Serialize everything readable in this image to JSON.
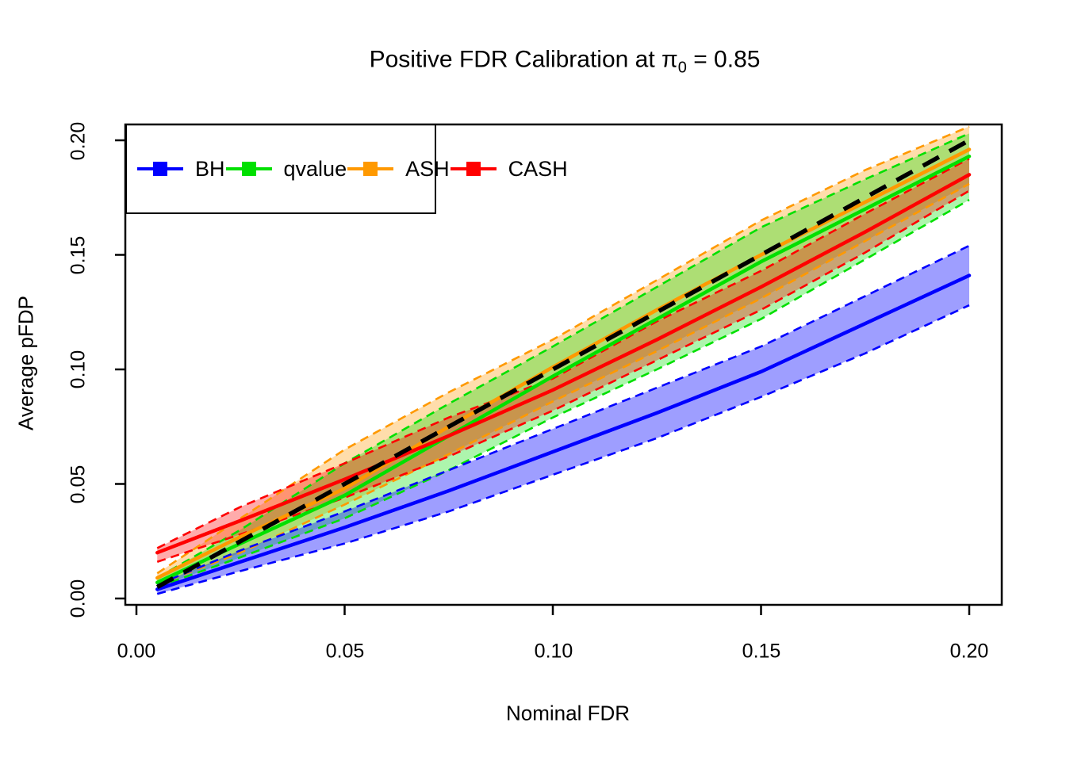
{
  "title": {
    "prefix": "Positive FDR Calibration at ",
    "pi_symbol": "π",
    "pi_subscript": "0",
    "suffix": " = 0.85"
  },
  "axes": {
    "x": {
      "label": "Nominal FDR",
      "ticks": [
        "0.00",
        "0.05",
        "0.10",
        "0.15",
        "0.20"
      ],
      "tick_values": [
        0,
        0.05,
        0.1,
        0.15,
        0.2
      ],
      "range": [
        0,
        0.2
      ]
    },
    "y": {
      "label": "Average pFDP",
      "ticks": [
        "0.00",
        "0.05",
        "0.10",
        "0.15",
        "0.20"
      ],
      "tick_values": [
        0,
        0.05,
        0.1,
        0.15,
        0.2
      ],
      "range": [
        0,
        0.2
      ]
    }
  },
  "legend": {
    "items": [
      {
        "label": "BH",
        "color": "#0000FF"
      },
      {
        "label": "qvalue",
        "color": "#00E000"
      },
      {
        "label": "ASH",
        "color": "#FF9900"
      },
      {
        "label": "CASH",
        "color": "#FF0000"
      }
    ],
    "position": "top-left",
    "columns": 2
  },
  "chart_data": {
    "type": "line",
    "title": "Positive FDR Calibration at pi0 = 0.85",
    "xlabel": "Nominal FDR",
    "ylabel": "Average pFDP",
    "xlim": [
      0,
      0.2
    ],
    "ylim": [
      0,
      0.2
    ],
    "grid": false,
    "x": [
      0.005,
      0.025,
      0.05,
      0.075,
      0.1,
      0.125,
      0.15,
      0.175,
      0.2
    ],
    "series": [
      {
        "name": "BH",
        "color": "#0000FF",
        "fill": "rgba(0,0,255,0.38)",
        "mean": [
          0.004,
          0.016,
          0.031,
          0.047,
          0.064,
          0.081,
          0.099,
          0.12,
          0.141
        ],
        "lower": [
          0.002,
          0.012,
          0.024,
          0.038,
          0.054,
          0.07,
          0.088,
          0.107,
          0.128
        ],
        "upper": [
          0.006,
          0.021,
          0.038,
          0.056,
          0.074,
          0.092,
          0.11,
          0.132,
          0.154
        ]
      },
      {
        "name": "qvalue",
        "color": "#00E000",
        "fill": "rgba(0,224,0,0.32)",
        "mean": [
          0.007,
          0.024,
          0.045,
          0.071,
          0.097,
          0.122,
          0.147,
          0.17,
          0.193
        ],
        "lower": [
          0.005,
          0.018,
          0.035,
          0.056,
          0.079,
          0.1,
          0.122,
          0.148,
          0.174
        ],
        "upper": [
          0.009,
          0.03,
          0.059,
          0.085,
          0.11,
          0.136,
          0.162,
          0.183,
          0.203
        ]
      },
      {
        "name": "ASH",
        "color": "#FF9900",
        "fill": "rgba(255,153,0,0.33)",
        "mean": [
          0.009,
          0.027,
          0.048,
          0.075,
          0.101,
          0.126,
          0.15,
          0.173,
          0.196
        ],
        "lower": [
          0.006,
          0.02,
          0.041,
          0.063,
          0.086,
          0.108,
          0.131,
          0.156,
          0.181
        ],
        "upper": [
          0.011,
          0.035,
          0.065,
          0.09,
          0.113,
          0.139,
          0.165,
          0.187,
          0.206
        ]
      },
      {
        "name": "CASH",
        "color": "#FF0000",
        "fill": "rgba(255,0,0,0.33)",
        "mean": [
          0.02,
          0.034,
          0.052,
          0.071,
          0.091,
          0.113,
          0.136,
          0.16,
          0.185
        ],
        "lower": [
          0.016,
          0.028,
          0.044,
          0.062,
          0.082,
          0.104,
          0.126,
          0.151,
          0.178
        ],
        "upper": [
          0.022,
          0.04,
          0.059,
          0.079,
          0.096,
          0.121,
          0.143,
          0.168,
          0.192
        ]
      }
    ],
    "reference_line": {
      "name": "identity y = x",
      "color": "#000000",
      "style": "dashed",
      "from": [
        0.005,
        0.005
      ],
      "to": [
        0.2,
        0.2
      ]
    },
    "band_style": "shaded with dashed colored borders",
    "legend_entries": [
      "BH",
      "qvalue",
      "ASH",
      "CASH"
    ]
  }
}
